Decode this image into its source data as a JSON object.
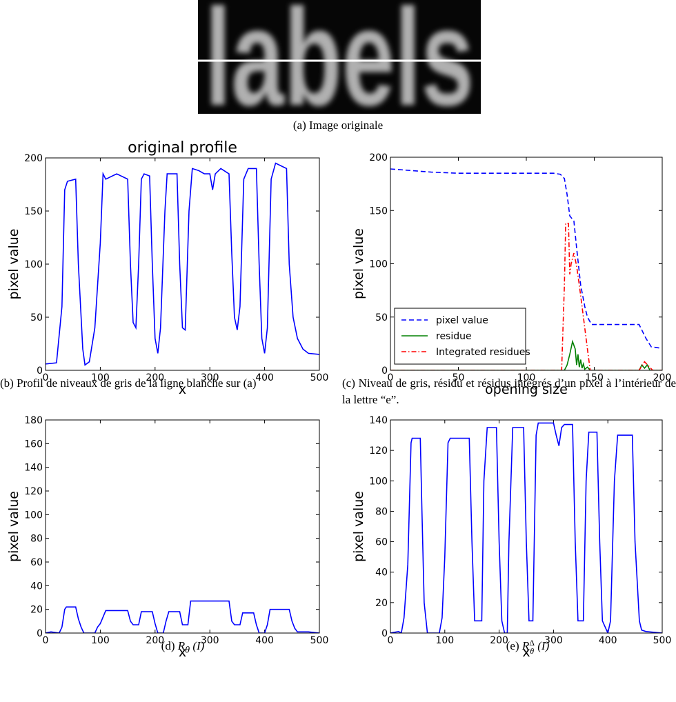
{
  "image": {
    "text": "labels",
    "caption": "(a) Image originale"
  },
  "chart_data": [
    {
      "type": "line",
      "title": "original profile",
      "xlabel": "x",
      "ylabel": "pixel value",
      "caption": "(b) Profil de niveaux de gris de la ligne blanche sur (a)",
      "xlim": [
        0,
        500
      ],
      "xticks": [
        0,
        100,
        200,
        300,
        400,
        500
      ],
      "ylim": [
        0,
        200
      ],
      "yticks": [
        0,
        50,
        100,
        150,
        200
      ],
      "series": [
        {
          "color": "#0000ff",
          "linestyle": "-",
          "x": [
            0,
            20,
            30,
            35,
            40,
            55,
            60,
            68,
            72,
            80,
            90,
            100,
            105,
            110,
            130,
            150,
            155,
            160,
            165,
            170,
            175,
            180,
            190,
            195,
            200,
            205,
            210,
            218,
            222,
            240,
            245,
            250,
            255,
            262,
            268,
            280,
            290,
            300,
            305,
            310,
            320,
            335,
            340,
            345,
            350,
            355,
            362,
            370,
            385,
            390,
            395,
            400,
            405,
            412,
            420,
            440,
            445,
            452,
            460,
            470,
            480,
            500
          ],
          "values": [
            6,
            7,
            60,
            170,
            178,
            180,
            100,
            20,
            5,
            8,
            40,
            120,
            185,
            180,
            185,
            180,
            100,
            45,
            40,
            100,
            180,
            185,
            183,
            100,
            30,
            16,
            40,
            150,
            185,
            185,
            100,
            40,
            38,
            150,
            190,
            188,
            185,
            185,
            170,
            185,
            190,
            185,
            110,
            50,
            38,
            60,
            180,
            190,
            190,
            100,
            30,
            16,
            40,
            180,
            195,
            190,
            100,
            50,
            30,
            20,
            16,
            15
          ]
        }
      ]
    },
    {
      "type": "line",
      "xlabel": "opening size",
      "ylabel": "pixel value",
      "caption": "(c) Niveau de gris, résidu et résidus intégrés d’un pixel à l’intérieur de la lettre “e”.",
      "xlim": [
        0,
        200
      ],
      "xticks": [
        0,
        50,
        100,
        150,
        200
      ],
      "ylim": [
        0,
        200
      ],
      "yticks": [
        0,
        50,
        100,
        150,
        200
      ],
      "legend": "lower left",
      "series": [
        {
          "name": "pixel value",
          "color": "#0000ff",
          "linestyle": "--",
          "x": [
            0,
            10,
            30,
            50,
            120,
            125,
            128,
            130,
            132,
            135,
            137,
            140,
            143,
            145,
            148,
            183,
            188,
            192,
            198
          ],
          "values": [
            189,
            188,
            186,
            185,
            185,
            184,
            180,
            165,
            145,
            140,
            115,
            80,
            60,
            50,
            43,
            43,
            30,
            22,
            21
          ]
        },
        {
          "name": "residue",
          "color": "#008000",
          "linestyle": "-",
          "x": [
            0,
            128,
            130,
            132,
            134,
            136,
            137,
            138,
            139,
            140,
            141,
            142,
            143,
            145,
            147,
            183,
            185,
            187,
            189,
            191,
            200
          ],
          "values": [
            0,
            0,
            5,
            15,
            27,
            20,
            5,
            15,
            3,
            10,
            2,
            6,
            1,
            3,
            0,
            0,
            5,
            2,
            5,
            0,
            0
          ]
        },
        {
          "name": "Integrated residues",
          "color": "#ff0000",
          "linestyle": "-.",
          "x": [
            0,
            126,
            128,
            129,
            131,
            132,
            133,
            135,
            137,
            139,
            141,
            143,
            145,
            147,
            183,
            185,
            187,
            190,
            193,
            200
          ],
          "values": [
            0,
            0,
            80,
            138,
            138,
            90,
            100,
            110,
            98,
            80,
            60,
            40,
            20,
            0,
            0,
            4,
            8,
            4,
            0,
            0
          ]
        }
      ]
    },
    {
      "type": "line",
      "xlabel": "x",
      "ylabel": "pixel value",
      "caption": {
        "prefix": "(d)",
        "symbol": "R",
        "sub": "θ",
        "arg": "(I)"
      },
      "xlim": [
        0,
        500
      ],
      "xticks": [
        0,
        100,
        200,
        300,
        400,
        500
      ],
      "ylim": [
        0,
        180
      ],
      "yticks": [
        0,
        20,
        40,
        60,
        80,
        100,
        120,
        140,
        160,
        180
      ],
      "series": [
        {
          "color": "#0000ff",
          "linestyle": "-",
          "x": [
            0,
            10,
            25,
            30,
            35,
            38,
            55,
            60,
            65,
            70,
            90,
            95,
            100,
            110,
            150,
            155,
            160,
            170,
            175,
            195,
            200,
            205,
            215,
            220,
            225,
            245,
            250,
            260,
            265,
            335,
            340,
            345,
            355,
            360,
            380,
            385,
            390,
            400,
            405,
            410,
            445,
            450,
            455,
            460,
            480,
            500
          ],
          "values": [
            0,
            1,
            0,
            5,
            20,
            22,
            22,
            12,
            5,
            0,
            0,
            5,
            8,
            19,
            19,
            10,
            7,
            7,
            18,
            18,
            8,
            0,
            0,
            10,
            18,
            18,
            7,
            7,
            27,
            27,
            10,
            7,
            7,
            17,
            17,
            7,
            0,
            0,
            7,
            20,
            20,
            10,
            4,
            1,
            1,
            0
          ]
        }
      ]
    },
    {
      "type": "line",
      "xlabel": "x",
      "ylabel": "pixel value",
      "caption": {
        "prefix": "(e)",
        "symbol": "R",
        "sub": "θ",
        "sup": "Δ",
        "arg": "(I)"
      },
      "xlim": [
        0,
        500
      ],
      "xticks": [
        0,
        100,
        200,
        300,
        400,
        500
      ],
      "ylim": [
        0,
        140
      ],
      "yticks": [
        0,
        20,
        40,
        60,
        80,
        100,
        120,
        140
      ],
      "series": [
        {
          "color": "#0000ff",
          "linestyle": "-",
          "x": [
            0,
            15,
            20,
            25,
            32,
            38,
            40,
            55,
            58,
            62,
            68,
            90,
            95,
            100,
            106,
            110,
            145,
            150,
            155,
            168,
            172,
            178,
            195,
            200,
            205,
            210,
            215,
            218,
            225,
            245,
            250,
            255,
            262,
            268,
            272,
            300,
            305,
            310,
            315,
            320,
            335,
            340,
            345,
            355,
            360,
            365,
            380,
            385,
            390,
            400,
            405,
            412,
            418,
            445,
            450,
            458,
            462,
            470,
            500
          ],
          "values": [
            0,
            1,
            0,
            10,
            45,
            125,
            128,
            128,
            80,
            20,
            0,
            0,
            10,
            50,
            125,
            128,
            128,
            60,
            8,
            8,
            100,
            135,
            135,
            60,
            8,
            0,
            0,
            60,
            135,
            135,
            60,
            8,
            8,
            130,
            138,
            138,
            130,
            123,
            135,
            137,
            137,
            60,
            8,
            8,
            100,
            132,
            132,
            60,
            8,
            0,
            8,
            100,
            130,
            130,
            60,
            8,
            2,
            1,
            0
          ]
        }
      ]
    }
  ]
}
